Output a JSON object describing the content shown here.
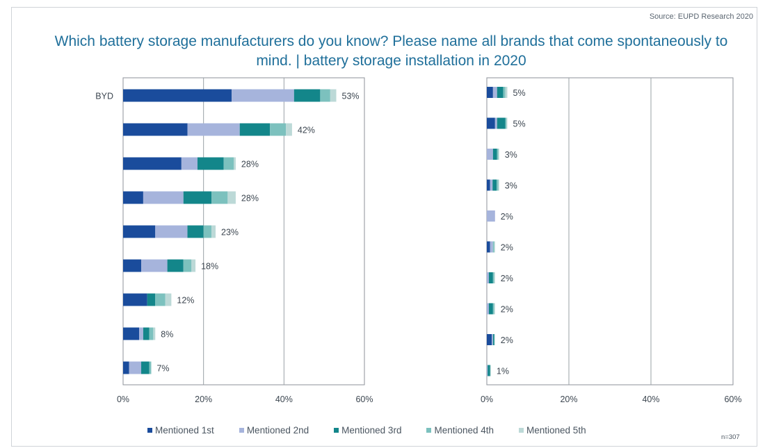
{
  "source": "Source: EUPD Research 2020",
  "title": "Which battery storage manufacturers do you know? Please name all brands that come spontaneously to mind. | battery storage installation in 2020",
  "sample_size": "n=307",
  "colors": {
    "mentioned_1st": "#1a4c9c",
    "mentioned_2nd": "#a6b4dc",
    "mentioned_3rd": "#13868a",
    "mentioned_4th": "#7cc1be",
    "mentioned_5th": "#bcd9d7",
    "gridline": "#9aa0a6",
    "label_text": "#3c4650"
  },
  "chart_data": [
    {
      "type": "bar",
      "orientation": "horizontal",
      "stacked": true,
      "categories": [
        "BYD",
        "",
        "",
        "",
        "",
        "",
        "",
        "",
        ""
      ],
      "series": [
        {
          "name": "Mentioned 1st",
          "values": [
            27,
            16,
            14.5,
            5,
            8,
            4.5,
            6,
            4,
            1.5
          ]
        },
        {
          "name": "Mentioned 2nd",
          "values": [
            15.5,
            13,
            4,
            10,
            8,
            6.5,
            0,
            1,
            3
          ]
        },
        {
          "name": "Mentioned 3rd",
          "values": [
            6.5,
            7.5,
            6.5,
            7,
            4,
            4,
            2,
            1.5,
            2
          ]
        },
        {
          "name": "Mentioned 4th",
          "values": [
            2.5,
            4,
            2.5,
            4,
            2,
            2,
            2.5,
            1,
            0.5
          ]
        },
        {
          "name": "Mentioned 5th",
          "values": [
            1.5,
            1.5,
            0.5,
            2,
            1,
            1,
            1.5,
            0.5,
            0
          ]
        }
      ],
      "totals": [
        53,
        42,
        28,
        28,
        23,
        18,
        12,
        8,
        7
      ],
      "data_labels": [
        "53%",
        "42%",
        "28%",
        "28%",
        "23%",
        "18%",
        "12%",
        "8%",
        "7%"
      ],
      "xlim": [
        0,
        60
      ],
      "x_ticks": [
        "0%",
        "20%",
        "40%",
        "60%"
      ],
      "grid": true
    },
    {
      "type": "bar",
      "orientation": "horizontal",
      "stacked": true,
      "categories": [
        "",
        "",
        "",
        "",
        "",
        "",
        "",
        "",
        "",
        ""
      ],
      "series": [
        {
          "name": "Mentioned 1st",
          "values": [
            1.5,
            2,
            0,
            0.8,
            0,
            0.8,
            0,
            0,
            1.2,
            0
          ]
        },
        {
          "name": "Mentioned 2nd",
          "values": [
            1,
            0.5,
            1.5,
            0.6,
            2,
            0.7,
            0.5,
            0.5,
            0.3,
            0.2
          ]
        },
        {
          "name": "Mentioned 3rd",
          "values": [
            1.5,
            2,
            1,
            1,
            0,
            0,
            1,
            1,
            0.3,
            0.6
          ]
        },
        {
          "name": "Mentioned 4th",
          "values": [
            0.5,
            0.3,
            0.3,
            0.4,
            0,
            0.3,
            0.3,
            0.3,
            0.1,
            0.1
          ]
        },
        {
          "name": "Mentioned 5th",
          "values": [
            0.5,
            0.2,
            0.2,
            0.2,
            0,
            0.2,
            0.2,
            0.2,
            0.1,
            0.1
          ]
        }
      ],
      "totals": [
        5,
        5,
        3,
        3,
        2,
        2,
        2,
        2,
        2,
        1
      ],
      "data_labels": [
        "5%",
        "5%",
        "3%",
        "3%",
        "2%",
        "2%",
        "2%",
        "2%",
        "2%",
        "1%"
      ],
      "xlim": [
        0,
        60
      ],
      "x_ticks": [
        "0%",
        "20%",
        "40%",
        "60%"
      ],
      "grid": true
    }
  ],
  "legend": {
    "placement": "bottom",
    "items": [
      "Mentioned 1st",
      "Mentioned 2nd",
      "Mentioned 3rd",
      "Mentioned 4th",
      "Mentioned 5th"
    ]
  }
}
